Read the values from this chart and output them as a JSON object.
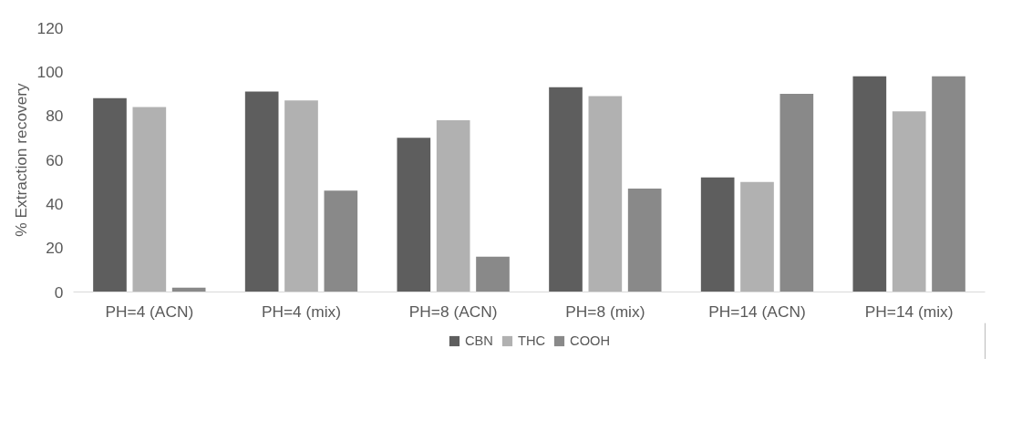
{
  "chart_data": {
    "type": "bar",
    "ylabel": "% Extraction recovery",
    "categories": [
      "PH=4 (ACN)",
      "PH=4 (mix)",
      "PH=8 (ACN)",
      "PH=8 (mix)",
      "PH=14 (ACN)",
      "PH=14 (mix)"
    ],
    "series": [
      {
        "name": "CBN",
        "color": "#5e5e5e",
        "values": [
          88,
          91,
          70,
          93,
          52,
          98
        ]
      },
      {
        "name": "THC",
        "color": "#b1b1b1",
        "values": [
          84,
          87,
          78,
          89,
          50,
          82
        ]
      },
      {
        "name": "COOH",
        "color": "#898989",
        "values": [
          2,
          46,
          16,
          47,
          90,
          98
        ]
      }
    ],
    "ylim": [
      0,
      120
    ],
    "yticks": [
      0,
      20,
      40,
      60,
      80,
      100,
      120
    ],
    "grid": false,
    "legend": "bottom"
  }
}
